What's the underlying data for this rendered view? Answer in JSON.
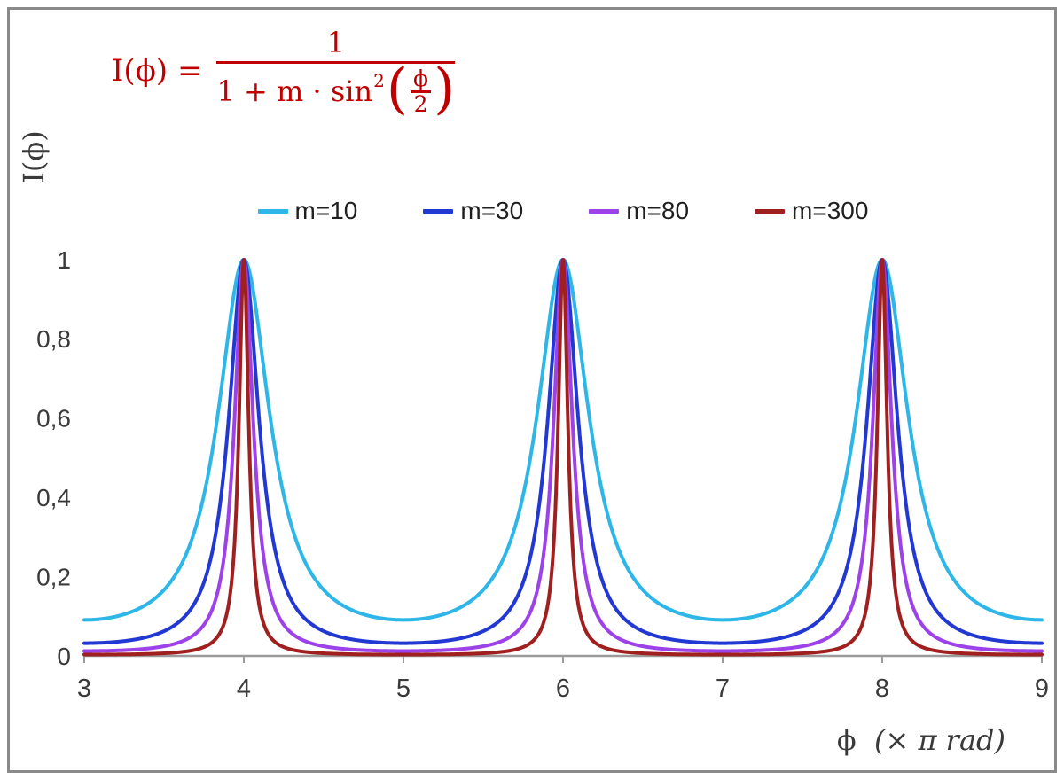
{
  "formula": {
    "lhs": "I(ϕ) =",
    "numerator": "1",
    "den_prefix": "1 + m · sin",
    "den_sup": "2",
    "lparen": "(",
    "rparen": ")",
    "inner_num": "ϕ",
    "inner_den": "2",
    "color": "#c00000"
  },
  "axes": {
    "ylabel": "I(ϕ)",
    "xlabel_phi": "ϕ",
    "xlabel_rest": "(× π rad)",
    "tick_color": "#3a3a3a",
    "axis_line_color": "#9b9b9b"
  },
  "frame": {
    "border_color": "#8a8a8a"
  },
  "chart_data": {
    "type": "line",
    "formula_text": "I(ϕ) = 1 / (1 + m·sin²(ϕ/2))",
    "x_axis_units": "phi in multiples of pi rad",
    "x_range": [
      3,
      9
    ],
    "ylim": [
      0,
      1
    ],
    "x_tick_values": [
      3,
      4,
      5,
      6,
      7,
      8,
      9
    ],
    "x_ticks": [
      "3",
      "4",
      "5",
      "6",
      "7",
      "8",
      "9"
    ],
    "y_tick_values": [
      0,
      0.2,
      0.4,
      0.6,
      0.8,
      1
    ],
    "y_ticks": [
      "0",
      "0,2",
      "0,4",
      "0,6",
      "0,8",
      "1"
    ],
    "grid": false,
    "legend_position": "top-center",
    "peaks_at_x": [
      4,
      6,
      8
    ],
    "peak_value": 1,
    "minima_at_x": [
      3,
      5,
      7,
      9
    ],
    "y_at_minima": {
      "m=10": 0.091,
      "m=30": 0.032,
      "m=80": 0.012,
      "m=300": 0.003
    },
    "series": [
      {
        "name": "m=10",
        "m": 10,
        "color": "#2eb6e8"
      },
      {
        "name": "m=30",
        "m": 30,
        "color": "#2238d2"
      },
      {
        "name": "m=80",
        "m": 80,
        "color": "#9c42e8"
      },
      {
        "name": "m=300",
        "m": 300,
        "color": "#a02020"
      }
    ]
  }
}
